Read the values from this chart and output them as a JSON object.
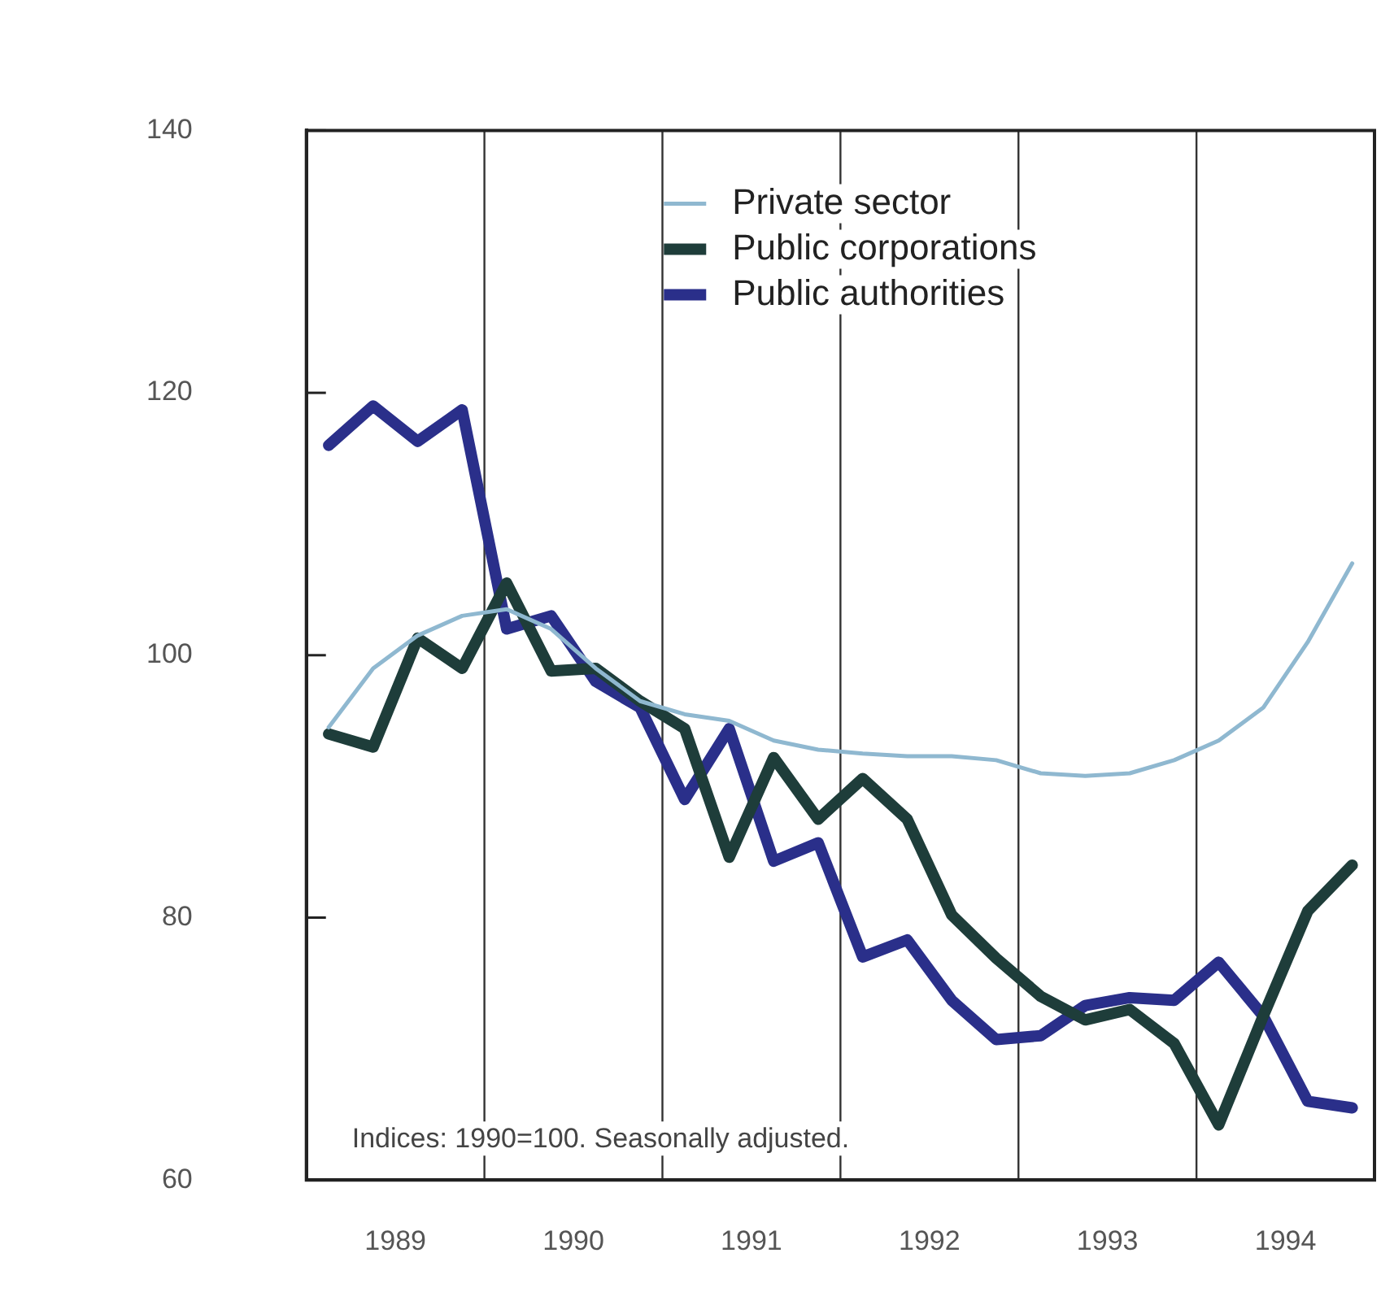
{
  "chart_data": {
    "type": "line",
    "x": [
      1989.125,
      1989.375,
      1989.625,
      1989.875,
      1990.125,
      1990.375,
      1990.625,
      1990.875,
      1991.125,
      1991.375,
      1991.625,
      1991.875,
      1992.125,
      1992.375,
      1992.625,
      1992.875,
      1993.125,
      1993.375,
      1993.625,
      1993.875,
      1994.125,
      1994.375,
      1994.625,
      1994.875
    ],
    "series": [
      {
        "name": "Private sector",
        "color": "#8fb8d0",
        "values": [
          94.5,
          99,
          101.5,
          103,
          103.5,
          102,
          99,
          96.5,
          95.5,
          95,
          93.5,
          92.8,
          92.5,
          92.3,
          92.3,
          92,
          91,
          90.8,
          91,
          92,
          93.5,
          96,
          101,
          107
        ]
      },
      {
        "name": "Public corporations",
        "color": "#1e3d3a",
        "values": [
          94,
          93,
          101.3,
          99,
          105.5,
          98.8,
          99,
          96.5,
          94.4,
          84.6,
          92.2,
          87.5,
          90.6,
          87.5,
          80.2,
          76.9,
          74,
          72.2,
          73,
          70.4,
          64.2,
          72.5,
          80.5,
          84
        ]
      },
      {
        "name": "Public authorities",
        "color": "#2a2f8a",
        "values": [
          116,
          119,
          116.3,
          118.7,
          102,
          103,
          98,
          96,
          89,
          94.4,
          84.3,
          85.7,
          77,
          78.3,
          73.7,
          70.7,
          71,
          73.3,
          73.9,
          73.7,
          76.6,
          72.5,
          66,
          65.5
        ]
      }
    ],
    "xlim": [
      1989,
      1995
    ],
    "xticks": [
      {
        "value": 1989.5,
        "label": "1989"
      },
      {
        "value": 1990.5,
        "label": "1990"
      },
      {
        "value": 1991.5,
        "label": "1991"
      },
      {
        "value": 1992.5,
        "label": "1992"
      },
      {
        "value": 1993.5,
        "label": "1993"
      },
      {
        "value": 1994.5,
        "label": "1994"
      }
    ],
    "ylim": [
      60,
      140
    ],
    "yticks": [
      60,
      80,
      100,
      120,
      140
    ],
    "ref_lines": [
      {
        "axis": "x",
        "value": 1990,
        "label": null,
        "color": "#333333"
      },
      {
        "axis": "x",
        "value": 1991,
        "label": null,
        "color": "#333333"
      },
      {
        "axis": "x",
        "value": 1992,
        "label": null,
        "color": "#333333"
      },
      {
        "axis": "x",
        "value": 1993,
        "label": null,
        "color": "#333333"
      },
      {
        "axis": "x",
        "value": 1994,
        "label": null,
        "color": "#333333"
      }
    ],
    "annotations": [
      "Indices: 1990=100. Seasonally adjusted."
    ],
    "grid": false,
    "legend": "top",
    "marker": "none",
    "line_style": "solid"
  }
}
